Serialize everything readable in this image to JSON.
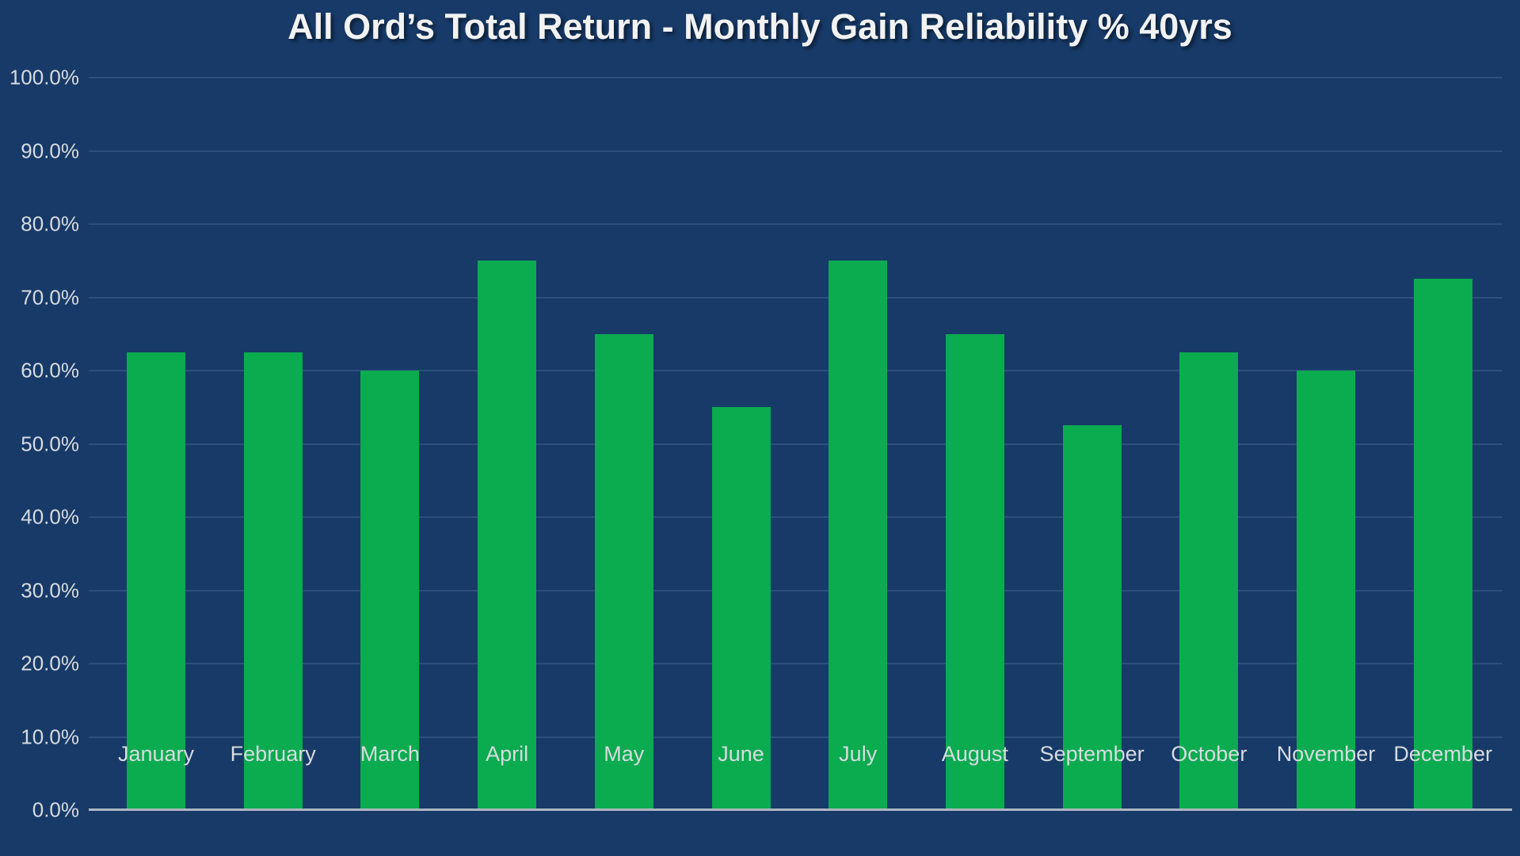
{
  "chart_data": {
    "type": "bar",
    "title": "All Ord’s Total Return - Monthly Gain Reliability % 40yrs",
    "categories": [
      "January",
      "February",
      "March",
      "April",
      "May",
      "June",
      "July",
      "August",
      "September",
      "October",
      "November",
      "December"
    ],
    "values": [
      62.5,
      62.5,
      60.0,
      75.0,
      65.0,
      55.0,
      75.0,
      65.0,
      52.5,
      62.5,
      60.0,
      72.5
    ],
    "value_unit": "%",
    "xlabel": "",
    "ylabel": "",
    "ylim": [
      0,
      100
    ],
    "ytick_step": 10,
    "ytick_labels": [
      "0.0%",
      "10.0%",
      "20.0%",
      "30.0%",
      "40.0%",
      "50.0%",
      "60.0%",
      "70.0%",
      "80.0%",
      "90.0%",
      "100.0%"
    ],
    "grid": true,
    "legend": "none"
  },
  "colors": {
    "background": "#173A68",
    "bar": "#0BAB50",
    "gridline": "#2E4E7C",
    "axis_line": "#AEB6C2",
    "tick_label": "#D8DBDF",
    "title_text": "#F2F2F2"
  }
}
